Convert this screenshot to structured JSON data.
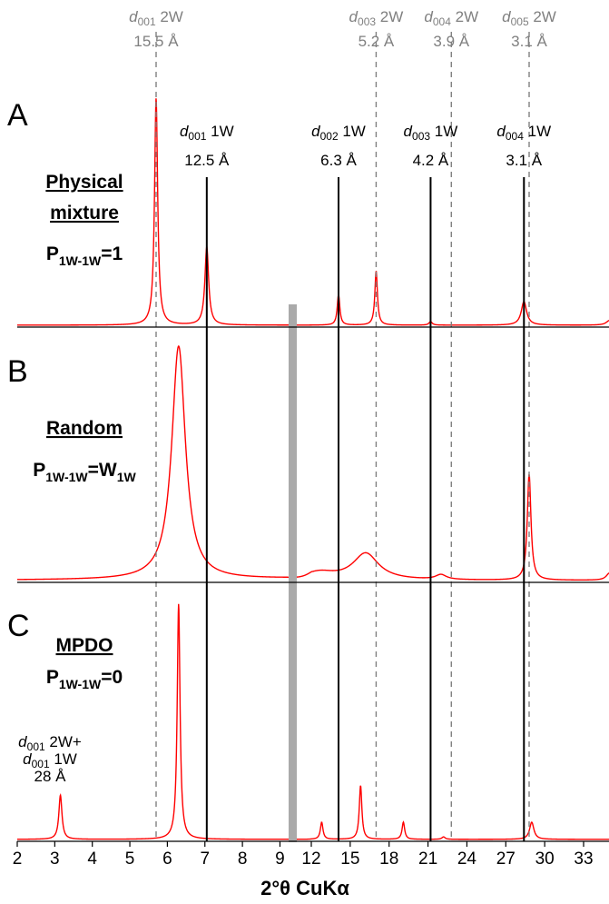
{
  "chart_data": {
    "type": "line",
    "title": "",
    "xlabel": "2°θ CuKα",
    "xtick_labels": [
      "2",
      "3",
      "4",
      "5",
      "6",
      "7",
      "8",
      "9",
      "12",
      "15",
      "18",
      "21",
      "24",
      "27",
      "30",
      "33"
    ],
    "x_scale": "broken axis: linear 2–9, linear 12–33 (range 9–12 omitted)",
    "xlim": [
      2,
      35
    ],
    "grid": false,
    "axis_break_at": 9.4,
    "colors": {
      "pattern": "#ff0000",
      "ref_1W": "#000000",
      "ref_2W": "#808080",
      "break_bar": "#aaaaaa"
    },
    "reference_lines_2W": [
      {
        "x": 5.7,
        "order": "001",
        "label": "2W",
        "spacing": "15.5 Å"
      },
      {
        "x": 17.0,
        "order": "003",
        "label": "2W",
        "spacing": "5.2 Å"
      },
      {
        "x": 22.8,
        "order": "004",
        "label": "2W",
        "spacing": "3.9 Å"
      },
      {
        "x": 28.8,
        "order": "005",
        "label": "2W",
        "spacing": "3.1 Å"
      }
    ],
    "reference_lines_1W": [
      {
        "x": 7.05,
        "order": "001",
        "label": "1W",
        "spacing": "12.5 Å"
      },
      {
        "x": 14.1,
        "order": "002",
        "label": "1W",
        "spacing": "6.3 Å"
      },
      {
        "x": 21.2,
        "order": "003",
        "label": "1W",
        "spacing": "4.2 Å"
      },
      {
        "x": 28.4,
        "order": "004",
        "label": "1W",
        "spacing": "3.1 Å"
      }
    ],
    "panels": [
      {
        "letter": "A",
        "name": "Physical mixture",
        "name_lines": [
          "Physical",
          "mixture"
        ],
        "p_label": {
          "main": "P",
          "sub": "1W-1W",
          "rest": "=1"
        },
        "peaks": [
          {
            "x": 5.7,
            "height": 0.96,
            "width": 0.05
          },
          {
            "x": 7.05,
            "height": 0.33,
            "width": 0.06
          },
          {
            "x": 14.1,
            "height": 0.13,
            "width": 0.12
          },
          {
            "x": 17.0,
            "height": 0.23,
            "width": 0.12
          },
          {
            "x": 21.2,
            "height": 0.015,
            "width": 0.15
          },
          {
            "x": 28.4,
            "height": 0.1,
            "width": 0.25
          },
          {
            "x": 35.0,
            "height": 0.02,
            "width": 0.3
          }
        ]
      },
      {
        "letter": "B",
        "name": "Random",
        "name_lines": [
          "Random"
        ],
        "p_label": {
          "main": "P",
          "sub": "1W-1W",
          "rest": "=W",
          "sub2": "1W"
        },
        "peaks": [
          {
            "x": 6.3,
            "height": 0.97,
            "width": 0.22
          },
          {
            "x": 16.2,
            "height": 0.11,
            "width": 1.2
          },
          {
            "x": 12.6,
            "height": 0.03,
            "width": 1.5
          },
          {
            "x": 22.0,
            "height": 0.02,
            "width": 0.5
          },
          {
            "x": 28.8,
            "height": 0.44,
            "width": 0.17
          },
          {
            "x": 35.0,
            "height": 0.03,
            "width": 0.3
          }
        ]
      },
      {
        "letter": "C",
        "name": "MPDO",
        "name_lines": [
          "MPDO"
        ],
        "p_label": {
          "main": "P",
          "sub": "1W-1W",
          "rest": "=0"
        },
        "annotation": {
          "lines": [
            [
              "d",
              "001",
              " 2W+"
            ],
            [
              "d",
              "001",
              " 1W"
            ],
            [
              "",
              "",
              "28 Å"
            ]
          ],
          "x": 3.15
        },
        "peaks": [
          {
            "x": 3.15,
            "height": 0.18,
            "width": 0.05
          },
          {
            "x": 6.3,
            "height": 0.96,
            "width": 0.045
          },
          {
            "x": 12.8,
            "height": 0.07,
            "width": 0.12
          },
          {
            "x": 15.8,
            "height": 0.22,
            "width": 0.12
          },
          {
            "x": 19.1,
            "height": 0.07,
            "width": 0.12
          },
          {
            "x": 22.2,
            "height": 0.01,
            "width": 0.15
          },
          {
            "x": 29.0,
            "height": 0.07,
            "width": 0.2
          }
        ]
      }
    ]
  }
}
